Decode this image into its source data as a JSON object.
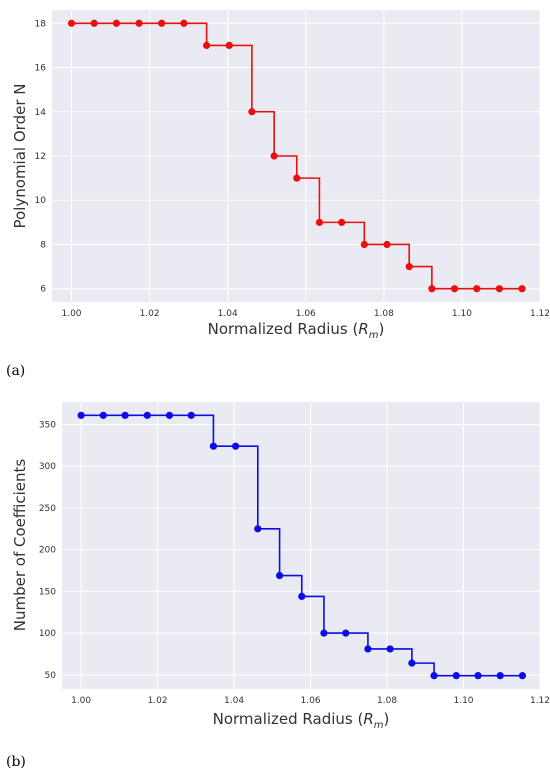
{
  "chart_data": [
    {
      "type": "line",
      "panel_label": "(a)",
      "xlabel_main": "Normalized Radius (",
      "xlabel_symbol": "R",
      "xlabel_subscript": "m",
      "xlabel_close": ")",
      "ylabel": "Polynomial Order N",
      "xlim": [
        0.995,
        1.12
      ],
      "ylim": [
        5.4,
        18.6
      ],
      "xticks": [
        "1.00",
        "1.02",
        "1.04",
        "1.06",
        "1.08",
        "1.10",
        "1.12"
      ],
      "yticks": [
        "6",
        "8",
        "10",
        "12",
        "14",
        "16",
        "18"
      ],
      "drawstyle": "steps-post",
      "grid": true,
      "color": "#e81010",
      "series": [
        {
          "x": [
            1.0,
            1.0058,
            1.0115,
            1.0173,
            1.0231,
            1.0288,
            1.0346,
            1.0404,
            1.0462,
            1.0519,
            1.0577,
            1.0635,
            1.0692,
            1.075,
            1.0808,
            1.0865,
            1.0923,
            1.0981,
            1.1038,
            1.1096,
            1.1154
          ],
          "y": [
            18,
            18,
            18,
            18,
            18,
            18,
            17,
            17,
            14,
            12,
            11,
            9,
            9,
            8,
            8,
            7,
            6,
            6,
            6,
            6,
            6
          ]
        }
      ]
    },
    {
      "type": "line",
      "panel_label": "(b)",
      "xlabel_main": "Normalized Radius (",
      "xlabel_symbol": "R",
      "xlabel_subscript": "m",
      "xlabel_close": ")",
      "ylabel": "Number of Coefficients",
      "xlim": [
        0.995,
        1.12
      ],
      "ylim": [
        33,
        377
      ],
      "xticks": [
        "1.00",
        "1.02",
        "1.04",
        "1.06",
        "1.08",
        "1.10",
        "1.12"
      ],
      "yticks": [
        "50",
        "100",
        "150",
        "200",
        "250",
        "300",
        "350"
      ],
      "drawstyle": "steps-post",
      "grid": true,
      "color": "#0c0ce8",
      "series": [
        {
          "x": [
            1.0,
            1.0058,
            1.0115,
            1.0173,
            1.0231,
            1.0288,
            1.0346,
            1.0404,
            1.0462,
            1.0519,
            1.0577,
            1.0635,
            1.0692,
            1.075,
            1.0808,
            1.0865,
            1.0923,
            1.0981,
            1.1038,
            1.1096,
            1.1154
          ],
          "y": [
            361,
            361,
            361,
            361,
            361,
            361,
            324,
            324,
            225,
            169,
            144,
            100,
            100,
            81,
            81,
            64,
            49,
            49,
            49,
            49,
            49
          ]
        }
      ]
    }
  ]
}
